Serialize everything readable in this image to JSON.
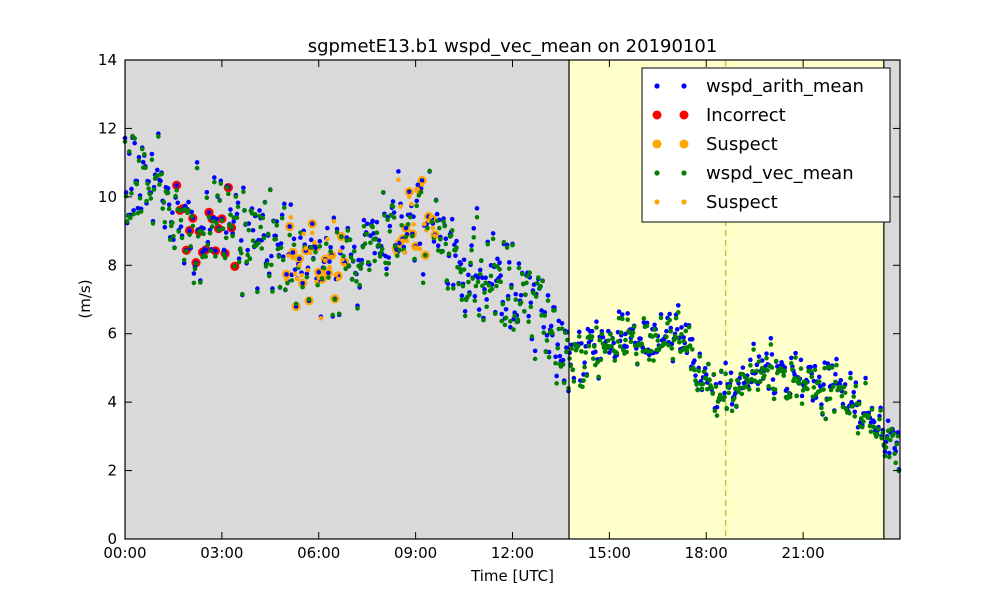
{
  "chart_data": {
    "type": "scatter",
    "title": "sgpmetE13.b1 wspd_vec_mean on 20190101",
    "xlabel": "Time [UTC]",
    "ylabel": "(m/s)",
    "xlim": [
      0,
      24
    ],
    "ylim": [
      0,
      14
    ],
    "x_ticks": [
      0,
      3,
      6,
      9,
      12,
      15,
      18,
      21
    ],
    "x_tick_labels": [
      "00:00",
      "03:00",
      "06:00",
      "09:00",
      "12:00",
      "15:00",
      "18:00",
      "21:00"
    ],
    "y_ticks": [
      0,
      2,
      4,
      6,
      8,
      10,
      12,
      14
    ],
    "y_tick_labels": [
      "0",
      "2",
      "4",
      "6",
      "8",
      "10",
      "12",
      "14"
    ],
    "grid": false,
    "legend_position": "top-right",
    "background_color": "#d9d9d9",
    "highlight_span": {
      "x_start": 13.75,
      "x_end": 23.5,
      "color": "#ffffcc"
    },
    "vertical_line": {
      "x": 18.6,
      "color": "#bcc43a",
      "style": "dashed"
    },
    "colors": {
      "wspd_arith_mean": "#0000ff",
      "incorrect": "#ff0000",
      "suspect": "#ffa500",
      "wspd_vec_mean": "#007f00"
    },
    "legend": [
      {
        "label": "wspd_arith_mean",
        "color": "#0000ff",
        "marker": "small-dot"
      },
      {
        "label": "Incorrect",
        "color": "#ff0000",
        "marker": "large-dot"
      },
      {
        "label": "Suspect",
        "color": "#ffa500",
        "marker": "large-dot"
      },
      {
        "label": "wspd_vec_mean",
        "color": "#007f00",
        "marker": "small-dot"
      },
      {
        "label": "Suspect",
        "color": "#ffa500",
        "marker": "small-dot"
      }
    ],
    "trend": [
      [
        0.0,
        9.8
      ],
      [
        0.5,
        10.8
      ],
      [
        1.0,
        10.4
      ],
      [
        1.5,
        9.3
      ],
      [
        2.0,
        8.6
      ],
      [
        2.5,
        8.9
      ],
      [
        3.0,
        9.3
      ],
      [
        3.5,
        8.8
      ],
      [
        4.0,
        8.6
      ],
      [
        4.5,
        8.7
      ],
      [
        5.0,
        8.5
      ],
      [
        5.5,
        8.2
      ],
      [
        6.0,
        8.0
      ],
      [
        6.5,
        8.2
      ],
      [
        7.0,
        8.3
      ],
      [
        7.5,
        8.5
      ],
      [
        8.0,
        8.7
      ],
      [
        8.5,
        8.6
      ],
      [
        9.0,
        9.0
      ],
      [
        9.5,
        9.0
      ],
      [
        10.0,
        8.5
      ],
      [
        10.5,
        8.1
      ],
      [
        11.0,
        7.7
      ],
      [
        11.5,
        7.4
      ],
      [
        12.0,
        7.4
      ],
      [
        12.5,
        6.9
      ],
      [
        13.0,
        6.3
      ],
      [
        13.5,
        5.7
      ],
      [
        14.0,
        5.3
      ],
      [
        14.5,
        5.5
      ],
      [
        15.0,
        5.8
      ],
      [
        15.5,
        5.9
      ],
      [
        16.0,
        5.6
      ],
      [
        16.5,
        5.9
      ],
      [
        17.0,
        6.0
      ],
      [
        17.5,
        5.3
      ],
      [
        18.0,
        4.5
      ],
      [
        18.5,
        4.1
      ],
      [
        19.0,
        4.4
      ],
      [
        19.5,
        4.9
      ],
      [
        20.0,
        4.8
      ],
      [
        20.5,
        4.6
      ],
      [
        21.0,
        4.6
      ],
      [
        21.5,
        4.5
      ],
      [
        22.0,
        4.3
      ],
      [
        22.5,
        4.2
      ],
      [
        23.0,
        3.5
      ],
      [
        23.5,
        3.0
      ],
      [
        24.0,
        2.8
      ]
    ],
    "incorrect_intervals": [
      [
        1.6,
        3.4
      ]
    ],
    "suspect_intervals": [
      [
        5.0,
        6.8
      ],
      [
        8.4,
        9.6
      ]
    ]
  }
}
